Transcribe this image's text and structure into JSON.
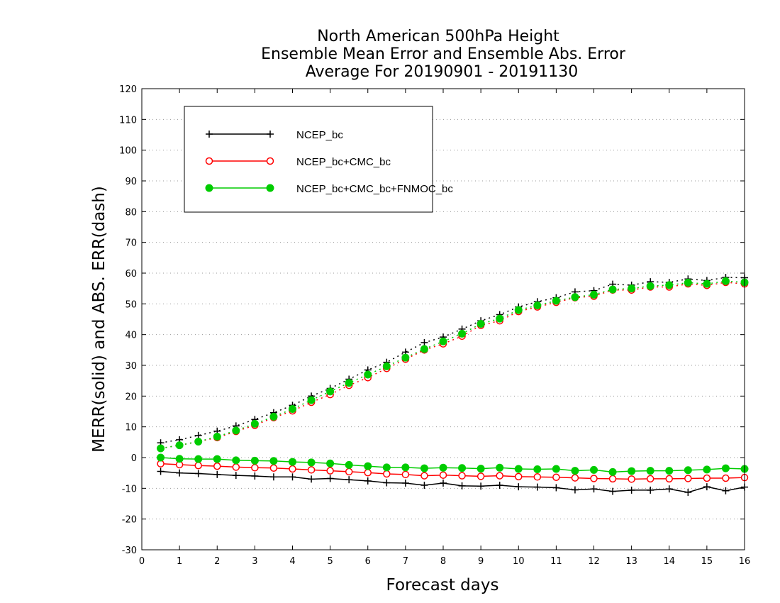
{
  "chart_data": {
    "type": "line",
    "title": [
      "North American 500hPa Height",
      "Ensemble Mean Error and Ensemble Abs. Error",
      "Average For 20190901 - 20191130"
    ],
    "xlabel": "Forecast days",
    "ylabel": "MERR(solid) and ABS. ERR(dash)",
    "xlim": [
      0,
      16
    ],
    "ylim": [
      -30,
      120
    ],
    "xticks": [
      "0",
      "1",
      "2",
      "3",
      "4",
      "5",
      "6",
      "7",
      "8",
      "9",
      "10",
      "11",
      "12",
      "13",
      "14",
      "15",
      "16"
    ],
    "yticks": [
      "-30",
      "-20",
      "-10",
      "0",
      "10",
      "20",
      "30",
      "40",
      "50",
      "60",
      "70",
      "80",
      "90",
      "100",
      "110",
      "120"
    ],
    "grid": "dotted horizontal",
    "legend_position": "top-left",
    "x": [
      0.5,
      1,
      1.5,
      2,
      2.5,
      3,
      3.5,
      4,
      4.5,
      5,
      5.5,
      6,
      6.5,
      7,
      7.5,
      8,
      8.5,
      9,
      9.5,
      10,
      10.5,
      11,
      11.5,
      12,
      12.5,
      13,
      13.5,
      14,
      14.5,
      15,
      15.5,
      16
    ],
    "series": [
      {
        "name": "NCEP_bc",
        "color": "#000000",
        "marker": "plus",
        "merr": [
          -4.5,
          -5,
          -5.2,
          -5.5,
          -5.8,
          -6,
          -6.3,
          -6.3,
          -7,
          -6.8,
          -7.2,
          -7.6,
          -8.2,
          -8.3,
          -9,
          -8.3,
          -9.2,
          -9.3,
          -9,
          -9.5,
          -9.6,
          -9.8,
          -10.5,
          -10.2,
          -11,
          -10.6,
          -10.6,
          -10.2,
          -11.3,
          -9.5,
          -10.8,
          -9.6
        ],
        "abs_err": [
          4.8,
          5.8,
          7.2,
          8.6,
          10.3,
          12.4,
          14.6,
          17,
          20,
          22.5,
          25.5,
          28.5,
          31,
          34.3,
          37.4,
          39.2,
          41.8,
          44.5,
          46.5,
          49,
          50.7,
          52,
          53.9,
          54.3,
          56.4,
          56.1,
          57.2,
          57,
          58.1,
          57.6,
          58.6,
          58.5
        ]
      },
      {
        "name": "NCEP_bc+CMC_bc",
        "color": "#ff0000",
        "marker": "open-circle",
        "merr": [
          -2,
          -2.3,
          -2.6,
          -2.8,
          -3.1,
          -3.3,
          -3.4,
          -3.7,
          -4,
          -4.3,
          -4.6,
          -4.9,
          -5.3,
          -5.5,
          -5.9,
          -5.7,
          -5.9,
          -6.1,
          -5.9,
          -6.2,
          -6.3,
          -6.4,
          -6.6,
          -6.8,
          -6.9,
          -7,
          -6.9,
          -6.9,
          -6.8,
          -6.7,
          -6.7,
          -6.5
        ],
        "abs_err": [
          3,
          4,
          5.2,
          6.5,
          8.5,
          10.5,
          13,
          15.2,
          18,
          20.5,
          23.5,
          26,
          29,
          32,
          35,
          37,
          39.5,
          43,
          44.5,
          47.5,
          49,
          50.5,
          52,
          52.5,
          54.5,
          54.5,
          55.5,
          55.5,
          56.5,
          56,
          57,
          56.5
        ]
      },
      {
        "name": "NCEP_bc+CMC_bc+FNMOC_bc",
        "color": "#00cc00",
        "marker": "filled-circle",
        "merr": [
          0,
          -0.4,
          -0.5,
          -0.5,
          -0.9,
          -1,
          -1.1,
          -1.4,
          -1.6,
          -1.9,
          -2.4,
          -2.8,
          -3.2,
          -3.2,
          -3.5,
          -3.3,
          -3.4,
          -3.6,
          -3.3,
          -3.7,
          -3.8,
          -3.7,
          -4.3,
          -4,
          -4.7,
          -4.4,
          -4.3,
          -4.3,
          -4.1,
          -3.9,
          -3.5,
          -3.7
        ],
        "abs_err": [
          3,
          4,
          5.2,
          6.8,
          8.8,
          11,
          13.3,
          15.8,
          18.7,
          21.5,
          24.3,
          27,
          29.7,
          32.5,
          35.3,
          37.8,
          40.3,
          43.5,
          45.2,
          48,
          49.5,
          51,
          52.2,
          53,
          54.7,
          55,
          55.8,
          56.1,
          56.9,
          56.5,
          57.4,
          57
        ]
      }
    ]
  }
}
